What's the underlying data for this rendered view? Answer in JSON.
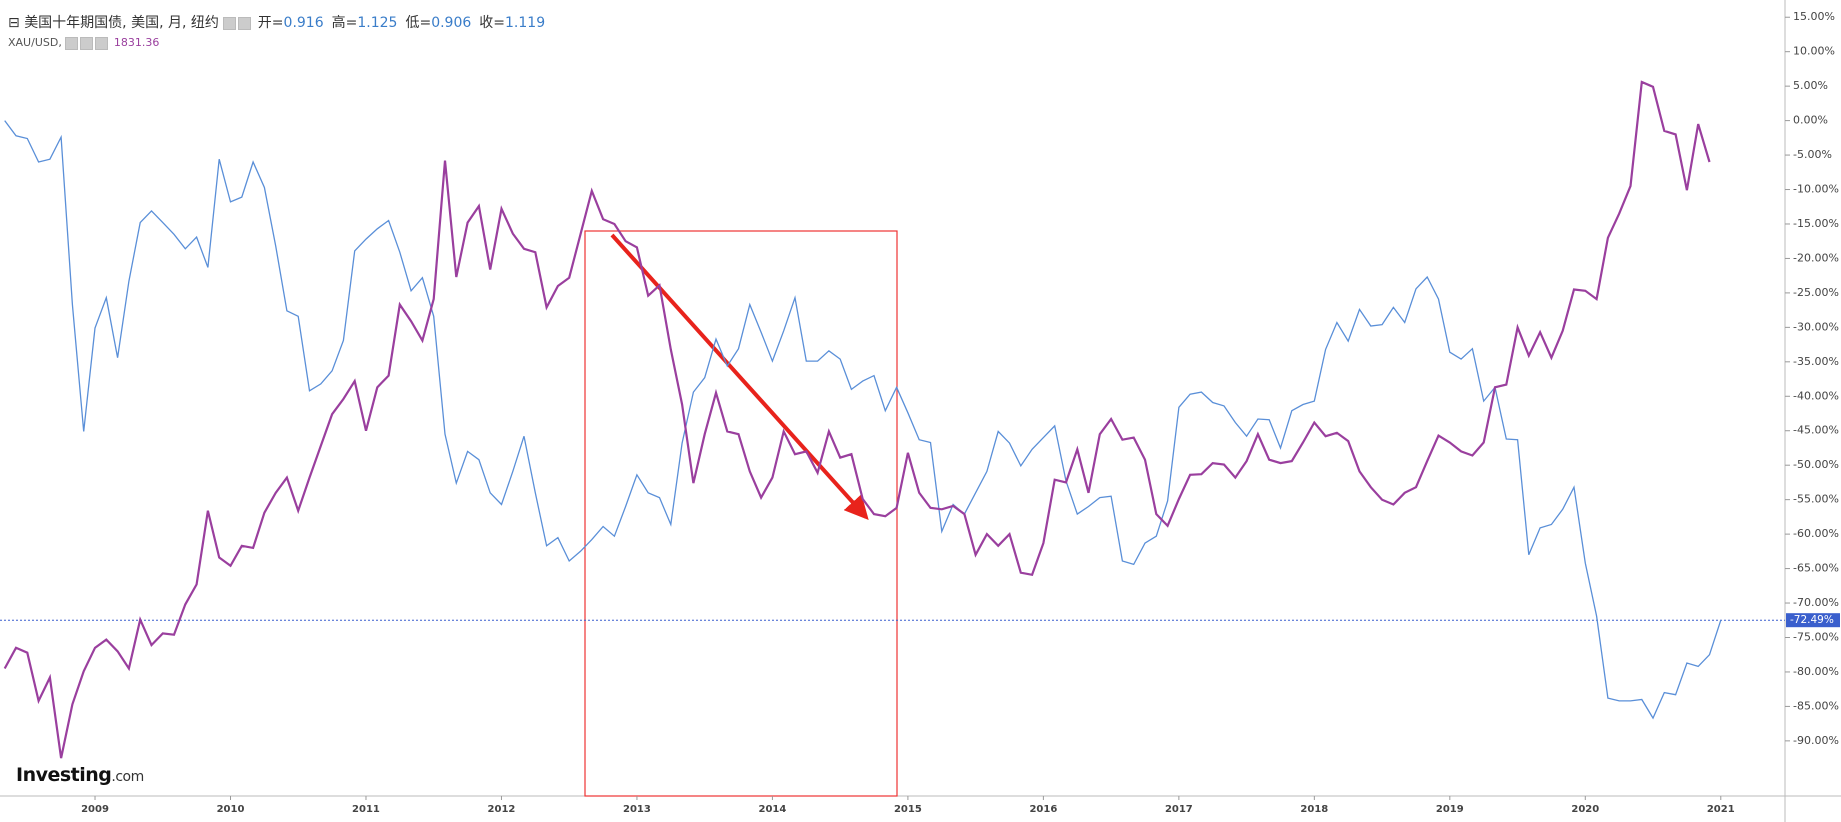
{
  "chart_data": {
    "type": "line",
    "categories": [
      null,
      null,
      null,
      null,
      null,
      null,
      null,
      null,
      "2009",
      null,
      null,
      null,
      null,
      null,
      null,
      null,
      null,
      null,
      null,
      null,
      "2010",
      null,
      null,
      null,
      null,
      null,
      null,
      null,
      null,
      null,
      null,
      null,
      "2011",
      null,
      null,
      null,
      null,
      null,
      null,
      null,
      null,
      null,
      null,
      null,
      "2012",
      null,
      null,
      null,
      null,
      null,
      null,
      null,
      null,
      null,
      null,
      null,
      "2013",
      null,
      null,
      null,
      null,
      null,
      null,
      null,
      null,
      null,
      null,
      null,
      "2014",
      null,
      null,
      null,
      null,
      null,
      null,
      null,
      null,
      null,
      null,
      null,
      "2015",
      null,
      null,
      null,
      null,
      null,
      null,
      null,
      null,
      null,
      null,
      null,
      "2016",
      null,
      null,
      null,
      null,
      null,
      null,
      null,
      null,
      null,
      null,
      null,
      "2017",
      null,
      null,
      null,
      null,
      null,
      null,
      null,
      null,
      null,
      null,
      null,
      "2018",
      null,
      null,
      null,
      null,
      null,
      null,
      null,
      null,
      null,
      null,
      null,
      "2019",
      null,
      null,
      null,
      null,
      null,
      null,
      null,
      null,
      null,
      null,
      null,
      "2020",
      null,
      null,
      null,
      null,
      null,
      null,
      null,
      null,
      null,
      null,
      null,
      "2021"
    ],
    "series": [
      {
        "name": "美国十年期国债, 美国, 月, 纽约",
        "color": "#5a8fd8",
        "ohlc": [
          {
            "label": "开=",
            "value": 0.916
          },
          {
            "label": "高=",
            "value": 1.125
          },
          {
            "label": "低=",
            "value": 0.906
          },
          {
            "label": "收=",
            "value": 1.119
          }
        ],
        "values": [
          0,
          -2.2,
          -2.6,
          -6.0,
          -5.6,
          -2.4,
          -26.7,
          -45.1,
          -30.1,
          -25.7,
          -34.4,
          -23.3,
          -14.8,
          -13.1,
          -14.8,
          -16.5,
          -18.6,
          -16.9,
          -21.3,
          -5.6,
          -11.8,
          -11.1,
          -6.0,
          -9.7,
          -18.2,
          -27.6,
          -28.4,
          -39.2,
          -38.2,
          -36.3,
          -31.9,
          -18.9,
          -17.2,
          -15.7,
          -14.5,
          -19.1,
          -24.7,
          -22.8,
          -28.4,
          -45.5,
          -52.6,
          -48.0,
          -49.2,
          -54.0,
          -55.7,
          -50.9,
          -45.8,
          -54.0,
          -61.7,
          -60.5,
          -63.9,
          -62.5,
          -60.8,
          -58.9,
          -60.3,
          -56.0,
          -51.4,
          -54.0,
          -54.7,
          -58.6,
          -46.8,
          -39.4,
          -37.3,
          -31.7,
          -35.6,
          -33.1,
          -26.7,
          -30.7,
          -34.9,
          -30.5,
          -25.7,
          -34.9,
          -34.9,
          -33.4,
          -34.6,
          -39.0,
          -37.8,
          -37.0,
          -42.1,
          -38.7,
          -42.4,
          -46.3,
          -46.7,
          -59.6,
          -55.7,
          -57.1,
          -54.0,
          -50.9,
          -45.1,
          -46.8,
          -50.1,
          -47.7,
          -46.0,
          -44.3,
          -52.3,
          -57.1,
          -56.0,
          -54.7,
          -54.5,
          -63.9,
          -64.4,
          -61.3,
          -60.3,
          -55.2,
          -41.6,
          -39.7,
          -39.4,
          -40.9,
          -41.4,
          -43.8,
          -45.8,
          -43.3,
          -43.4,
          -47.5,
          -42.1,
          -41.2,
          -40.7,
          -33.2,
          -29.3,
          -32.0,
          -27.4,
          -29.8,
          -29.6,
          -27.1,
          -29.3,
          -24.4,
          -22.7,
          -25.9,
          -33.6,
          -34.6,
          -33.1,
          -40.7,
          -38.7,
          -46.2,
          -46.3,
          -63.0,
          -59.1,
          -58.6,
          -56.4,
          -53.2,
          -64.2,
          -71.9,
          -83.8,
          -84.2,
          -84.2,
          -84.0,
          -86.7,
          -83.0,
          -83.3,
          -78.7,
          -79.2,
          -77.5,
          -72.49
        ]
      },
      {
        "name": "XAU/USD,",
        "color": "#9a3f9e",
        "last": 1831.36,
        "values": [
          -79.5,
          -76.5,
          -77.2,
          -84.2,
          -80.8,
          -92.5,
          -84.7,
          -79.9,
          -76.5,
          -75.3,
          -77.0,
          -79.5,
          -72.4,
          -76.1,
          -74.4,
          -74.6,
          -70.2,
          -67.3,
          -56.6,
          -63.4,
          -64.6,
          -61.7,
          -62.0,
          -56.9,
          -54.0,
          -51.8,
          -56.6,
          -51.8,
          -47.2,
          -42.6,
          -40.4,
          -37.8,
          -45.0,
          -38.7,
          -37.0,
          -26.7,
          -29.1,
          -31.9,
          -25.9,
          -5.8,
          -22.7,
          -14.8,
          -12.4,
          -21.6,
          -12.8,
          -16.4,
          -18.6,
          -19.1,
          -27.1,
          -24.0,
          -22.8,
          -16.5,
          -10.2,
          -14.3,
          -15.0,
          -17.5,
          -18.4,
          -25.4,
          -23.9,
          -33.2,
          -41.2,
          -52.6,
          -45.5,
          -39.5,
          -45.1,
          -45.5,
          -50.9,
          -54.7,
          -51.8,
          -45.1,
          -48.4,
          -48.0,
          -51.1,
          -45.1,
          -48.9,
          -48.4,
          -54.9,
          -57.1,
          -57.4,
          -56.2,
          -48.2,
          -54.0,
          -56.2,
          -56.4,
          -55.9,
          -57.1,
          -63.0,
          -60.0,
          -61.7,
          -60.0,
          -65.6,
          -65.9,
          -61.3,
          -52.1,
          -52.5,
          -47.7,
          -54.0,
          -45.5,
          -43.3,
          -46.3,
          -46.0,
          -49.2,
          -57.1,
          -58.8,
          -54.9,
          -51.4,
          -51.3,
          -49.7,
          -49.9,
          -51.8,
          -49.4,
          -45.5,
          -49.2,
          -49.7,
          -49.4,
          -46.7,
          -43.8,
          -45.8,
          -45.3,
          -46.5,
          -50.9,
          -53.2,
          -55.0,
          -55.7,
          -54.0,
          -53.2,
          -49.4,
          -45.7,
          -46.7,
          -48.0,
          -48.6,
          -46.7,
          -38.7,
          -38.3,
          -30.0,
          -34.1,
          -30.7,
          -34.4,
          -30.5,
          -24.5,
          -24.7,
          -25.9,
          -17.0,
          -13.5,
          -9.5,
          5.6,
          4.9,
          -1.5,
          -2.0,
          -10.1,
          -0.5,
          -6.0,
          null
        ]
      }
    ],
    "ylim": [
      -98,
      17.5
    ],
    "yticks": [
      {
        "value": 15,
        "label": "15.00%"
      },
      {
        "value": 10,
        "label": "10.00%"
      },
      {
        "value": 5,
        "label": "5.00%"
      },
      {
        "value": 0,
        "label": "0.00%"
      },
      {
        "value": -5,
        "label": "-5.00%"
      },
      {
        "value": -10,
        "label": "-10.00%"
      },
      {
        "value": -15,
        "label": "-15.00%"
      },
      {
        "value": -20,
        "label": "-20.00%"
      },
      {
        "value": -25,
        "label": "-25.00%"
      },
      {
        "value": -30,
        "label": "-30.00%"
      },
      {
        "value": -35,
        "label": "-35.00%"
      },
      {
        "value": -40,
        "label": "-40.00%"
      },
      {
        "value": -45,
        "label": "-45.00%"
      },
      {
        "value": -50,
        "label": "-50.00%"
      },
      {
        "value": -55,
        "label": "-55.00%"
      },
      {
        "value": -60,
        "label": "-60.00%"
      },
      {
        "value": -65,
        "label": "-65.00%"
      },
      {
        "value": -70,
        "label": "-70.00%"
      },
      {
        "value": -75,
        "label": "-75.00%"
      },
      {
        "value": -80,
        "label": "-80.00%"
      },
      {
        "value": -85,
        "label": "-85.00%"
      },
      {
        "value": -90,
        "label": "-90.00%"
      }
    ],
    "reference": {
      "value": -72.49,
      "label": "-72.49%",
      "color": "#3a5fcd"
    }
  },
  "logo": {
    "text": "Investing",
    "suffix": ".com"
  }
}
